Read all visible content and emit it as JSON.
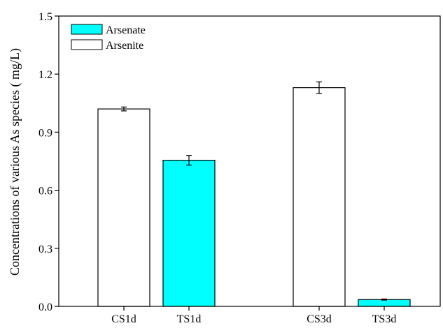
{
  "chart_data": {
    "type": "bar",
    "ylabel": "Concentrations of various As species ( mg/L)",
    "ylim": [
      0,
      1.5
    ],
    "yticks": [
      "0.0",
      "0.3",
      "0.6",
      "0.9",
      "1.2",
      "1.5"
    ],
    "categories": [
      "CS1d",
      "TS1d",
      "CS3d",
      "TS3d"
    ],
    "bars": [
      {
        "category": "CS1d",
        "species": "Arsenite",
        "value": 1.02,
        "error": 0.01
      },
      {
        "category": "TS1d",
        "species": "Arsenate",
        "value": 0.755,
        "error": 0.025
      },
      {
        "category": "CS3d",
        "species": "Arsenite",
        "value": 1.13,
        "error": 0.03
      },
      {
        "category": "TS3d",
        "species": "Arsenate",
        "value": 0.035,
        "error": 0.003
      }
    ],
    "legend": {
      "position": "top-left",
      "entries": [
        {
          "name": "Arsenate",
          "color": "#00ffff"
        },
        {
          "name": "Arsenite",
          "color": "#ffffff"
        }
      ]
    },
    "colors": {
      "Arsenate": "#00ffff",
      "Arsenite": "#ffffff",
      "edge": "#000000"
    },
    "grid": false
  }
}
